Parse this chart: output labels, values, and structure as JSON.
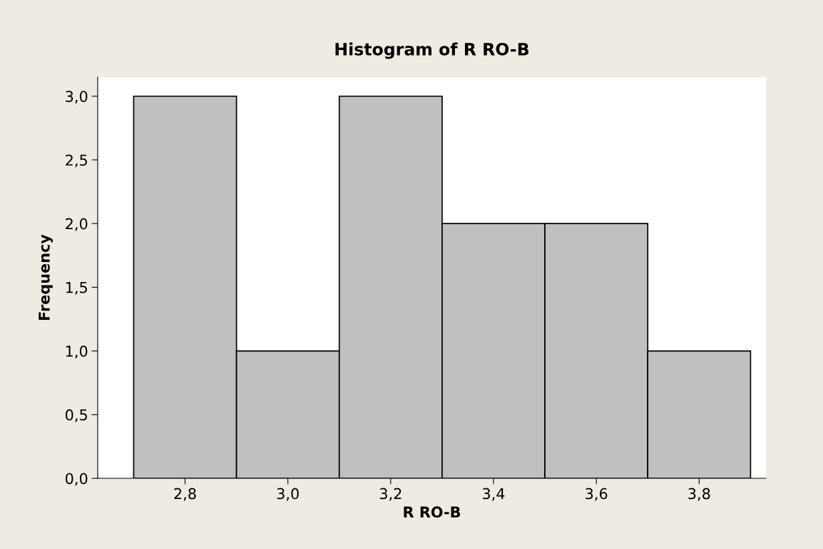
{
  "chart_data": {
    "type": "histogram",
    "title": "Histogram of R RO-B",
    "xlabel": "R RO-B",
    "ylabel": "Frequency",
    "bins": [
      2.7,
      2.9,
      3.1,
      3.3,
      3.5,
      3.7,
      3.9
    ],
    "values": [
      3,
      1,
      3,
      2,
      2,
      1
    ],
    "color": "#c0c0c0",
    "xlim": [
      2.63,
      3.93
    ],
    "xticks": [
      {
        "value": 2.8,
        "label": "2,8"
      },
      {
        "value": 3.0,
        "label": "3,0"
      },
      {
        "value": 3.2,
        "label": "3,2"
      },
      {
        "value": 3.4,
        "label": "3,4"
      },
      {
        "value": 3.6,
        "label": "3,6"
      },
      {
        "value": 3.8,
        "label": "3,8"
      }
    ],
    "ylim": [
      0,
      3.15
    ],
    "yticks": [
      {
        "value": 0,
        "label": "0,0"
      },
      {
        "value": 0.5,
        "label": "0,5"
      },
      {
        "value": 1.0,
        "label": "1,0"
      },
      {
        "value": 1.5,
        "label": "1,5"
      },
      {
        "value": 2.0,
        "label": "2,0"
      },
      {
        "value": 2.5,
        "label": "2,5"
      },
      {
        "value": 3.0,
        "label": "3,0"
      }
    ],
    "grid": false
  }
}
